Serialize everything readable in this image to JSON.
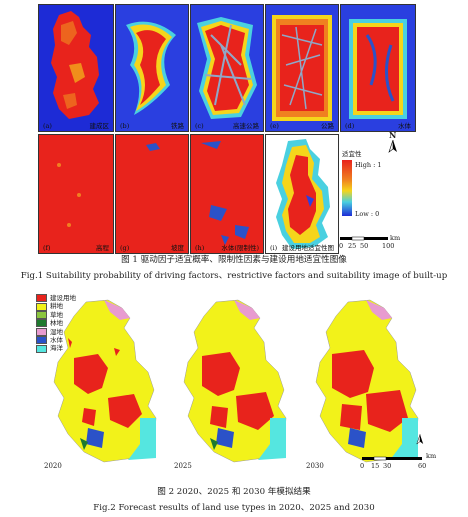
{
  "figure1": {
    "panels": [
      {
        "letter": "(a)",
        "label": "建成区"
      },
      {
        "letter": "(b)",
        "label": "铁路"
      },
      {
        "letter": "(c)",
        "label": "高速公路"
      },
      {
        "letter": "(e)",
        "label": "公路"
      },
      {
        "letter": "(d)",
        "label": "水体"
      },
      {
        "letter": "(f)",
        "label": "高程"
      },
      {
        "letter": "(g)",
        "label": "坡度"
      },
      {
        "letter": "(h)",
        "label": "水体(限制性)"
      },
      {
        "letter": "(i)",
        "label": "建设用地适宜性图"
      }
    ],
    "legend": {
      "title": "适宜性",
      "high": "High : 1",
      "low": "Low : 0"
    },
    "north": "N",
    "scale": {
      "ticks": [
        "0",
        "25",
        "50",
        "100"
      ],
      "unit": "km"
    },
    "caption_cn": "图 1 驱动因子适宜概率、限制性因素与建设用地适宜性图像",
    "caption_en": "Fig.1 Suitability probability of driving factors、restrictive factors and suitability image of built-up",
    "colors": {
      "high": "#e8231c",
      "mid": "#f5d51b",
      "low": "#1d2bd6",
      "water": "#3fa5e8"
    }
  },
  "figure2": {
    "legend": [
      {
        "label": "建设用地",
        "color": "#e8231c"
      },
      {
        "label": "耕地",
        "color": "#f2f21a"
      },
      {
        "label": "草地",
        "color": "#8cc63f"
      },
      {
        "label": "林地",
        "color": "#1f7a2f"
      },
      {
        "label": "湿地",
        "color": "#e89bd0"
      },
      {
        "label": "水体",
        "color": "#2b52c8"
      },
      {
        "label": "海洋",
        "color": "#55e6e0"
      }
    ],
    "years": [
      "2020",
      "2025",
      "2030"
    ],
    "scale": {
      "ticks": [
        "0",
        "15",
        "30",
        "60"
      ],
      "unit": "km"
    },
    "caption_cn": "图 2 2020、2025 和 2030 年模拟结果",
    "caption_en": "Fig.2 Forecast results of land use types in 2020、2025 and 2030"
  }
}
